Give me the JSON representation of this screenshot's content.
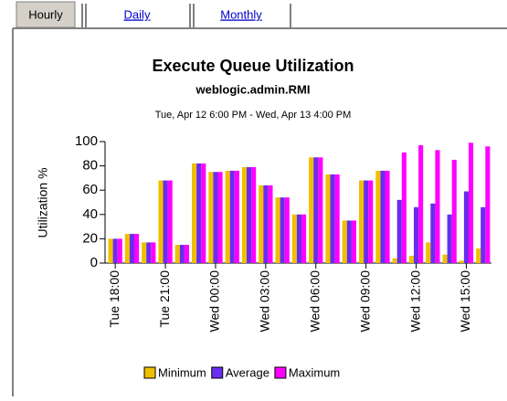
{
  "tabs": [
    "Hourly",
    "Daily",
    "Monthly"
  ],
  "chart_data": {
    "type": "bar",
    "title": "Execute Queue Utilization",
    "subtitle": "weblogic.admin.RMI",
    "date_range": "Tue, Apr 12 6:00 PM - Wed, Apr 13 4:00 PM",
    "y_label": "Utilization %",
    "categories": [
      "Tue 18:00",
      null,
      null,
      "Tue 21:00",
      null,
      null,
      "Wed 00:00",
      null,
      null,
      "Wed 03:00",
      null,
      null,
      "Wed 06:00",
      null,
      null,
      "Wed 09:00",
      null,
      null,
      "Wed 12:00",
      null,
      null,
      "Wed 15:00",
      null
    ],
    "series": [
      {
        "name": "Minimum",
        "color": "#f0c000",
        "values": [
          20,
          24,
          17,
          68,
          15,
          82,
          75,
          76,
          79,
          64,
          54,
          40,
          87,
          73,
          35,
          68,
          76,
          4,
          6,
          17,
          7,
          2,
          12
        ]
      },
      {
        "name": "Average",
        "color": "#6a2cf0",
        "values": [
          20,
          24,
          17,
          68,
          15,
          82,
          75,
          76,
          79,
          64,
          54,
          40,
          87,
          73,
          35,
          68,
          76,
          52,
          46,
          49,
          40,
          59,
          46
        ]
      },
      {
        "name": "Maximum",
        "color": "#ff00ff",
        "values": [
          20,
          24,
          17,
          68,
          15,
          82,
          75,
          76,
          79,
          64,
          54,
          40,
          87,
          73,
          35,
          68,
          76,
          91,
          97,
          93,
          85,
          99,
          96
        ]
      }
    ],
    "ylim": [
      0,
      100
    ],
    "yticks": [
      0,
      20,
      40,
      60,
      80,
      100
    ],
    "legend": "bottom"
  }
}
